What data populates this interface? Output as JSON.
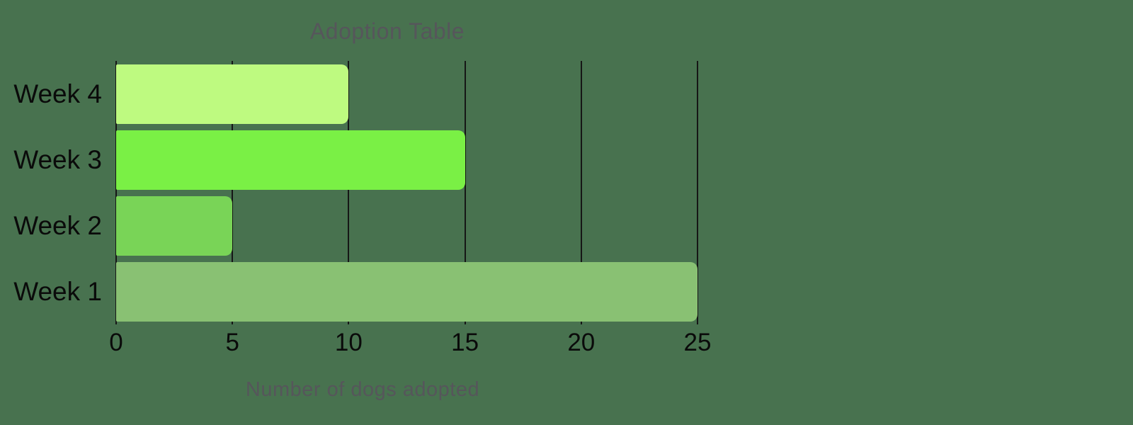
{
  "chart_data": {
    "type": "bar",
    "orientation": "horizontal",
    "title": "Adoption Table",
    "xlabel": "Number of dogs adopted",
    "ylabel": "",
    "xlim": [
      0,
      25
    ],
    "xticks": [
      0,
      5,
      10,
      15,
      20,
      25
    ],
    "grid": "vertical-only",
    "legend": "none",
    "categories": [
      "Week 4",
      "Week 3",
      "Week 2",
      "Week 1"
    ],
    "values": [
      10,
      15,
      5,
      25
    ],
    "rows": [
      {
        "label": "Week 4",
        "value": 10,
        "color": "#BEFA80"
      },
      {
        "label": "Week 3",
        "value": 15,
        "color": "#7AF045"
      },
      {
        "label": "Week 2",
        "value": 5,
        "color": "#79D457"
      },
      {
        "label": "Week 1",
        "value": 25,
        "color": "#89C173"
      }
    ]
  },
  "colors": {
    "background": "#48724F",
    "gridline": "#161616",
    "title_text": "#56565b",
    "axis_text": "#0a0a0a"
  }
}
